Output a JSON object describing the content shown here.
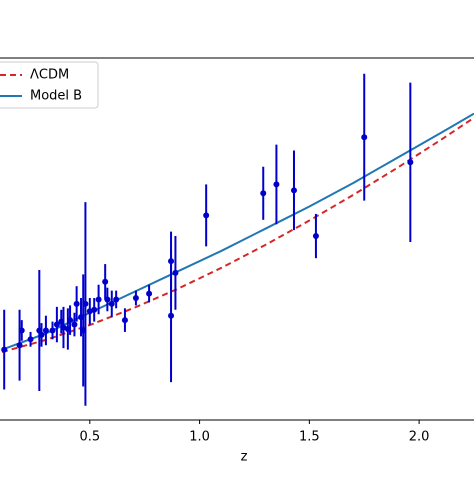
{
  "chart_data": {
    "type": "line",
    "x_label": "z",
    "xlim": [
      0.1,
      2.25
    ],
    "ylim": [
      27.3,
      272.7
    ],
    "xticks": [
      0.5,
      {
        "value": 1,
        "label": "1.0"
      },
      1.5,
      {
        "value": 2,
        "label": "2.0"
      }
    ],
    "legend": "upper left",
    "series": [
      {
        "name": "ΛCDM",
        "color": "#d62728",
        "dashed": true,
        "x": [
          0.1,
          0.3,
          0.5,
          0.7,
          0.9,
          1.1,
          1.3,
          1.5,
          1.7,
          1.9,
          2.1,
          2.25
        ],
        "values": [
          73.4,
          81.6,
          91.7,
          103.2,
          116.2,
          130.5,
          146.0,
          162.5,
          179.9,
          198.2,
          217.3,
          232.2
        ]
      },
      {
        "name": "Model B",
        "color": "#1f77b4",
        "x": [
          0.1,
          0.3,
          0.5,
          0.7,
          0.9,
          1.1,
          1.3,
          1.5,
          1.7,
          1.9,
          2.1,
          2.25
        ],
        "values": [
          75,
          86,
          100,
          114,
          128,
          142,
          157,
          172,
          188,
          205,
          222,
          235
        ]
      },
      {
        "type": "errorbar",
        "color": "#0000cd",
        "x": [
          0.11,
          0.18,
          0.19,
          0.23,
          0.27,
          0.28,
          0.3,
          0.33,
          0.35,
          0.37,
          0.38,
          0.4,
          0.41,
          0.43,
          0.44,
          0.46,
          0.47,
          0.48,
          0.5,
          0.52,
          0.54,
          0.57,
          0.58,
          0.6,
          0.62,
          0.66,
          0.71,
          0.77,
          0.87,
          0.87,
          0.89,
          1.03,
          1.29,
          1.35,
          1.43,
          1.53,
          1.75,
          1.96
        ],
        "values": [
          75,
          78,
          88,
          82,
          88,
          85,
          88,
          88,
          92,
          94,
          90,
          89,
          95,
          92,
          106,
          97,
          88,
          106,
          101,
          102,
          109,
          121,
          109,
          106,
          109,
          95,
          110,
          113,
          135,
          98,
          127,
          166,
          181,
          187,
          183,
          152,
          219,
          202
        ],
        "errors": [
          27,
          24,
          7,
          5,
          41,
          8,
          10,
          6,
          12,
          8,
          14,
          14,
          10,
          8,
          12,
          13,
          38,
          69,
          9,
          8,
          10,
          12,
          8,
          9,
          6,
          8,
          5,
          6,
          20,
          45,
          25,
          21,
          18,
          27,
          27,
          15,
          43,
          54
        ]
      }
    ]
  }
}
